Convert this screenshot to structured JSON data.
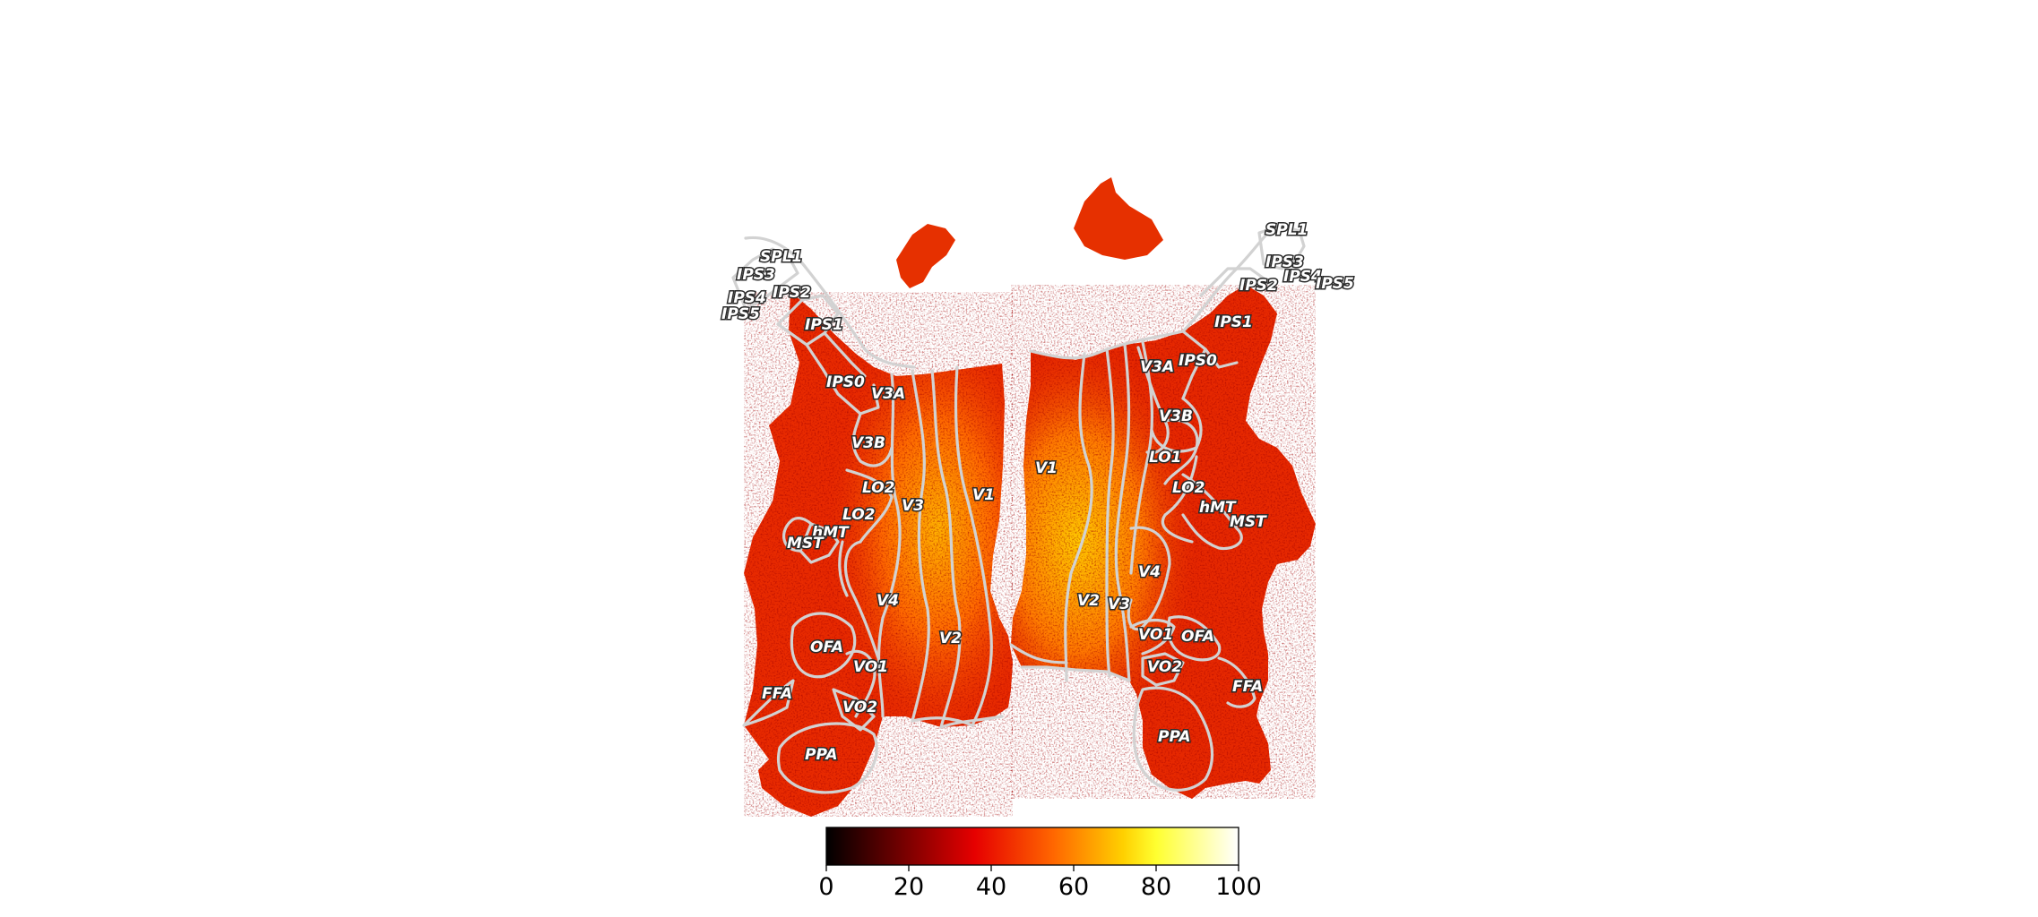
{
  "colorbar": {
    "ticks": [
      "0",
      "20",
      "40",
      "60",
      "80",
      "100"
    ],
    "range": [
      0,
      100
    ],
    "colormap": "hot",
    "stops": [
      "#000000",
      "#6b0000",
      "#e60000",
      "#ff6600",
      "#ffd000",
      "#ffff30",
      "#ffffff"
    ]
  },
  "left_hemisphere_labels": [
    "SPL1",
    "IPS3",
    "IPS2",
    "IPS4",
    "IPS5",
    "IPS1",
    "IPS0",
    "V3A",
    "V3B",
    "LO2",
    "LO2",
    "V3",
    "V1",
    "hMT",
    "MST",
    "V4",
    "V2",
    "OFA",
    "VO1",
    "FFA",
    "VO2",
    "PPA"
  ],
  "right_hemisphere_labels": [
    "SPL1",
    "IPS3",
    "IPS4",
    "IPS5",
    "IPS2",
    "IPS1",
    "IPS0",
    "V3A",
    "V3B",
    "LO1",
    "V1",
    "LO2",
    "hMT",
    "MST",
    "V4",
    "V2",
    "V3",
    "VO1",
    "OFA",
    "VO2",
    "FFA",
    "PPA"
  ]
}
